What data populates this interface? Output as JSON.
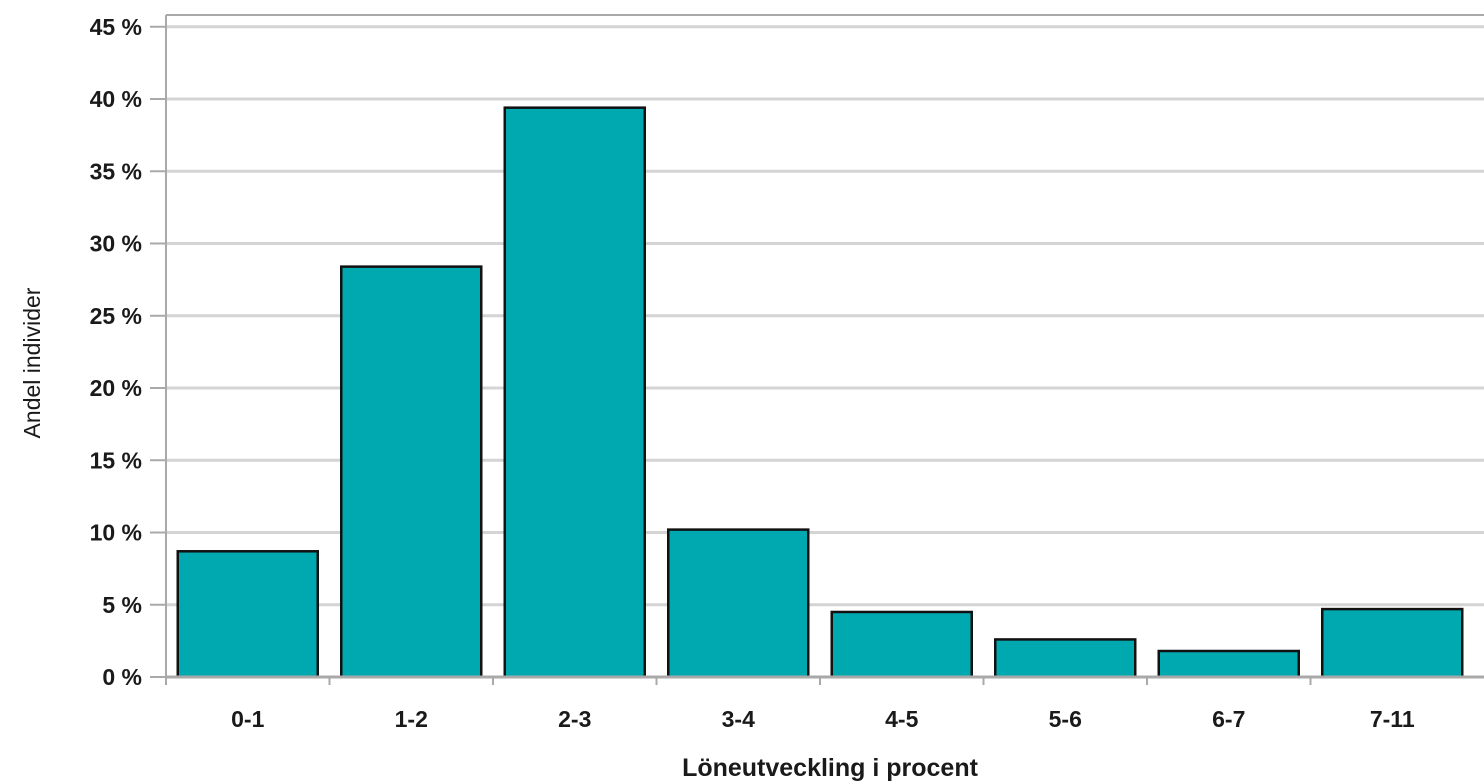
{
  "chart_data": {
    "type": "bar",
    "title": "",
    "xlabel": "Löneutveckling i procent",
    "ylabel": "Andel individer",
    "categories": [
      "0-1",
      "1-2",
      "2-3",
      "3-4",
      "4-5",
      "5-6",
      "6-7",
      "7-11"
    ],
    "values": [
      8.7,
      28.4,
      39.4,
      10.2,
      4.5,
      2.6,
      1.8,
      4.7
    ],
    "ylim": [
      0,
      45
    ],
    "yticks": [
      0,
      5,
      10,
      15,
      20,
      25,
      30,
      35,
      40,
      45
    ],
    "ytick_labels": [
      "0 %",
      "5 %",
      "10 %",
      "15 %",
      "20 %",
      "25 %",
      "30 %",
      "35 %",
      "40 %",
      "45 %"
    ],
    "grid": true,
    "legend": "none",
    "colors": {
      "bar_fill": "#00a8b0",
      "bar_stroke": "#111111",
      "grid": "#d4d4d4",
      "axis": "#a9a9a9"
    }
  }
}
